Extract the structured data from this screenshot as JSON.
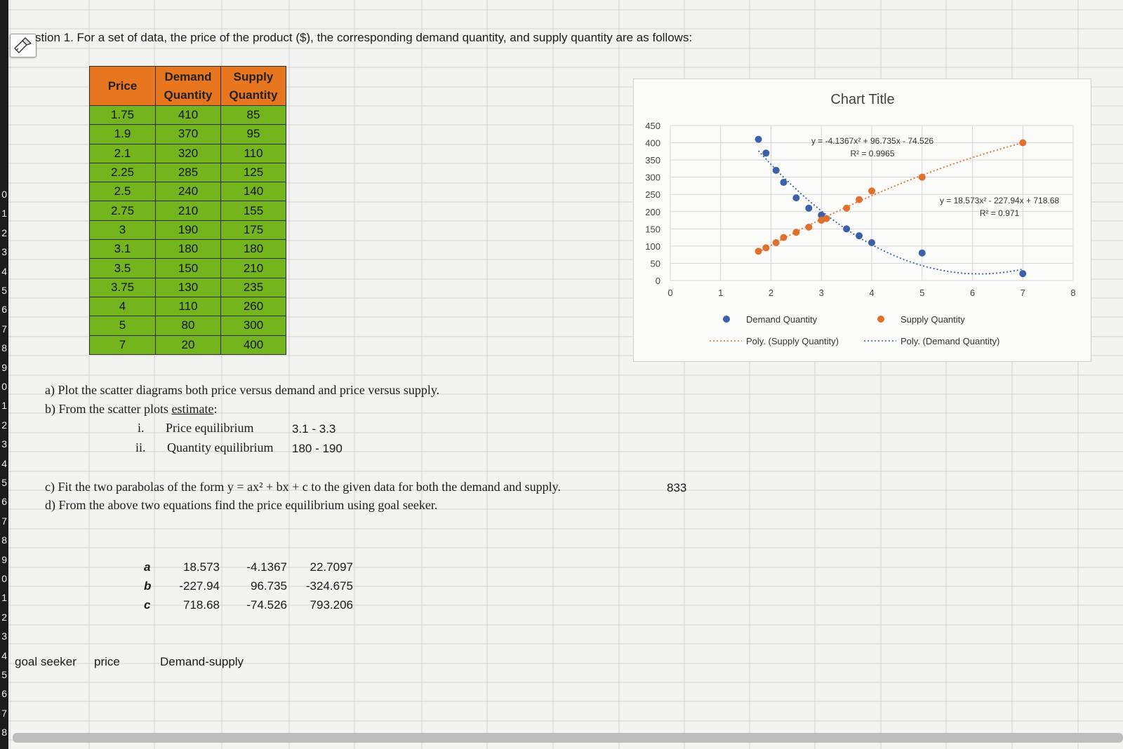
{
  "question": {
    "text": "stion 1. For a set of data, the price of the product ($), the corresponding demand quantity, and supply quantity are as follows:"
  },
  "table": {
    "headers": {
      "price": "Price",
      "demand": [
        "Demand",
        "Quantity"
      ],
      "supply": [
        "Supply",
        "Quantity"
      ]
    },
    "rows": [
      [
        "1.75",
        "410",
        "85"
      ],
      [
        "1.9",
        "370",
        "95"
      ],
      [
        "2.1",
        "320",
        "110"
      ],
      [
        "2.25",
        "285",
        "125"
      ],
      [
        "2.5",
        "240",
        "140"
      ],
      [
        "2.75",
        "210",
        "155"
      ],
      [
        "3",
        "190",
        "175"
      ],
      [
        "3.1",
        "180",
        "180"
      ],
      [
        "3.5",
        "150",
        "210"
      ],
      [
        "3.75",
        "130",
        "235"
      ],
      [
        "4",
        "110",
        "260"
      ],
      [
        "5",
        "80",
        "300"
      ],
      [
        "7",
        "20",
        "400"
      ]
    ]
  },
  "row_numbers": [
    "0",
    "1",
    "2",
    "3",
    "4",
    "5",
    "6",
    "7",
    "8",
    "9",
    "0",
    "1",
    "2",
    "3",
    "4",
    "5",
    "6",
    "7",
    "8",
    "9",
    "0",
    "1",
    "2",
    "3",
    "4",
    "5",
    "6",
    "7",
    "8"
  ],
  "parts": {
    "a": "a)   Plot the scatter diagrams both price versus demand and price versus supply.",
    "b_pre": "b)   From the scatter plots ",
    "b_link": "estimate",
    "b_post": ":",
    "i_num": "i.",
    "i_label": "Price equilibrium",
    "i_value": "3.1 - 3.3",
    "ii_num": "ii.",
    "ii_label": "Quantity equilibrium",
    "ii_value": "180 - 190",
    "c": "c)   Fit the two parabolas of the form y = ax² + bx + c to the given data for both the demand and supply.",
    "c_value": "833",
    "d": "d)   From the above two equations find the price equilibrium using goal seeker."
  },
  "coefficients": {
    "labels": [
      "a",
      "b",
      "c"
    ],
    "rows": [
      [
        "18.573",
        "-4.1367",
        "22.7097"
      ],
      [
        "-227.94",
        "96.735",
        "-324.675"
      ],
      [
        "718.68",
        "-74.526",
        "793.206"
      ]
    ]
  },
  "goal": {
    "goal_seeker": "goal seeker",
    "price": "price",
    "demand_supply": "Demand-supply"
  },
  "chart_data": {
    "type": "scatter",
    "title": "Chart Title",
    "xlim": [
      0,
      8
    ],
    "ylim": [
      0,
      450
    ],
    "x_ticks": [
      0,
      1,
      2,
      3,
      4,
      5,
      6,
      7,
      8
    ],
    "y_ticks": [
      0,
      50,
      100,
      150,
      200,
      250,
      300,
      350,
      400,
      450
    ],
    "grid": true,
    "legend_position": "bottom",
    "series": [
      {
        "name": "Demand Quantity",
        "color": "#3b5fa8",
        "x": [
          1.75,
          1.9,
          2.1,
          2.25,
          2.5,
          2.75,
          3,
          3.1,
          3.5,
          3.75,
          4,
          5,
          7
        ],
        "y": [
          410,
          370,
          320,
          285,
          240,
          210,
          190,
          180,
          150,
          130,
          110,
          80,
          20
        ]
      },
      {
        "name": "Supply Quantity",
        "color": "#e2702d",
        "x": [
          1.75,
          1.9,
          2.1,
          2.25,
          2.5,
          2.75,
          3,
          3.1,
          3.5,
          3.75,
          4,
          5,
          7
        ],
        "y": [
          85,
          95,
          110,
          125,
          140,
          155,
          175,
          180,
          210,
          235,
          260,
          300,
          400
        ]
      }
    ],
    "trendlines": [
      {
        "name": "Poly. (Supply Quantity)",
        "color": "#e2702d",
        "coef": [
          -4.1367,
          96.735,
          -74.526
        ],
        "equation": "y = -4.1367x² + 96.735x - 74.526",
        "r2": "R² = 0.9965"
      },
      {
        "name": "Poly. (Demand Quantity)",
        "color": "#3b5fa8",
        "coef": [
          18.573,
          -227.94,
          718.68
        ],
        "equation": "y = 18.573x² - 227.94x + 718.68",
        "r2": "R² = 0.971"
      }
    ]
  }
}
